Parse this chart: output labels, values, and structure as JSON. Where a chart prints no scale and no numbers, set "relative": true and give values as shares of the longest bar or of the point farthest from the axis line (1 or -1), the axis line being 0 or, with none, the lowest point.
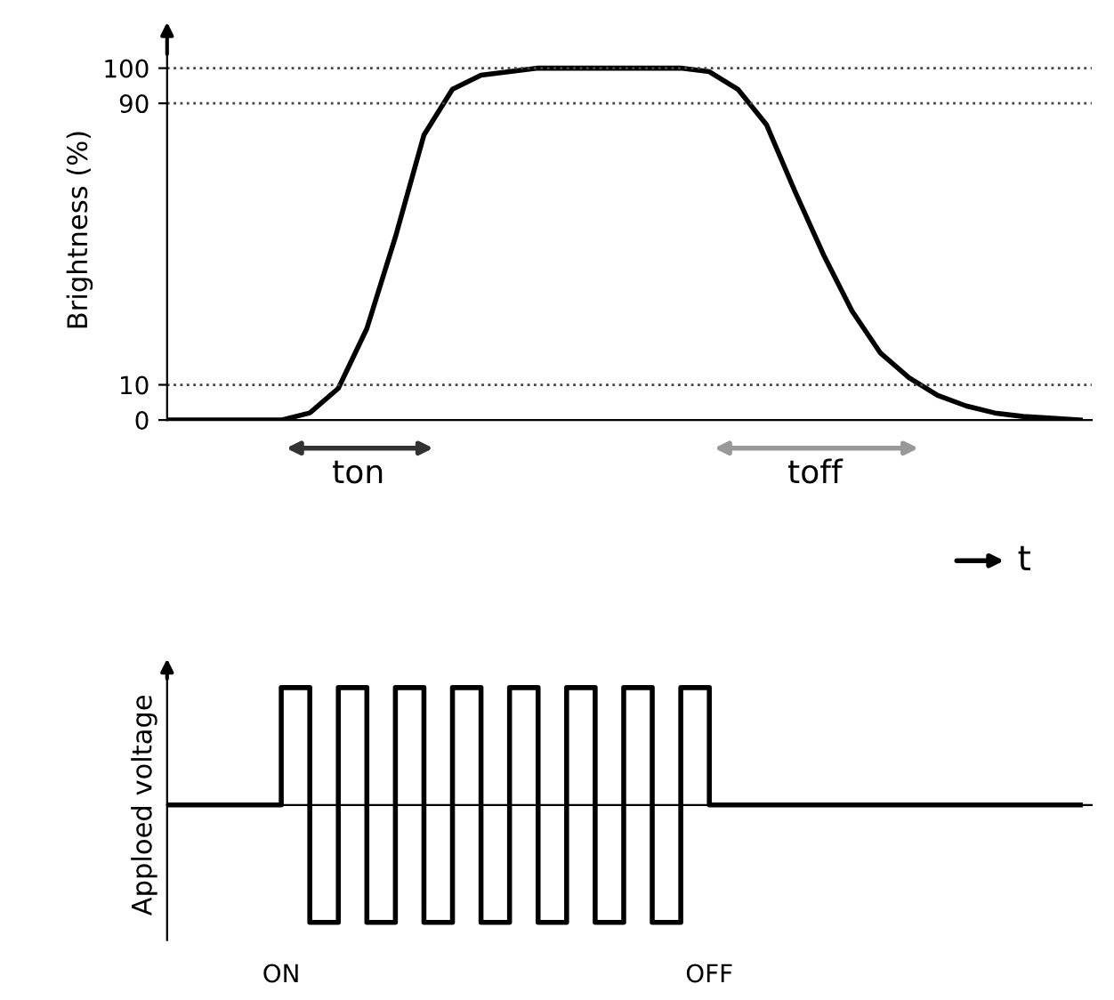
{
  "chart_data": [
    {
      "type": "line",
      "ylabel": "Brightness (%)",
      "categories": [
        null,
        null,
        null,
        null,
        null,
        null,
        null,
        null,
        null,
        null,
        null,
        null,
        null,
        null,
        null,
        null,
        null,
        null,
        null,
        null,
        null,
        null,
        null,
        null,
        null,
        null,
        null,
        null,
        null,
        null,
        null,
        null,
        null
      ],
      "series": [
        {
          "color": "#000000",
          "values": [
            0,
            0,
            0,
            0,
            0,
            2,
            9,
            26,
            52,
            81,
            94,
            98,
            99,
            100,
            100,
            100,
            100,
            100,
            100,
            99,
            94,
            84,
            65,
            47,
            31,
            19,
            12,
            7,
            4,
            2,
            1,
            0.5,
            0
          ]
        }
      ],
      "ylim": [
        0,
        108
      ],
      "yticks": [
        0,
        10,
        90,
        100
      ],
      "tick_labels": "y",
      "ref_lines": [
        {
          "axis": "y",
          "value": 100,
          "line_style": "dotted"
        },
        {
          "axis": "y",
          "value": 90,
          "line_style": "dotted"
        },
        {
          "axis": "y",
          "value": 10,
          "line_style": "dotted"
        }
      ],
      "annotations": [
        "ton",
        "toff",
        "t"
      ]
    },
    {
      "type": "step",
      "ylabel": "Apploed voltage",
      "relative": true,
      "tick_labels": false,
      "categories": [
        null,
        null,
        null,
        null,
        null,
        null,
        null,
        null,
        null,
        null,
        null,
        null,
        null,
        null,
        null,
        null,
        null,
        null,
        null,
        null,
        null,
        null,
        null,
        null,
        null,
        null,
        null,
        null,
        null,
        null,
        null,
        null,
        null
      ],
      "series": [
        {
          "color": "#000000",
          "values": [
            0,
            0,
            0,
            0,
            1,
            -1,
            1,
            -1,
            1,
            -1,
            1,
            -1,
            1,
            -1,
            1,
            -1,
            1,
            -1,
            1,
            0,
            0,
            0,
            0,
            0,
            0,
            0,
            0,
            0,
            0,
            0,
            0,
            0,
            0
          ]
        }
      ],
      "annotations": [
        "ON",
        "OFF"
      ]
    }
  ]
}
